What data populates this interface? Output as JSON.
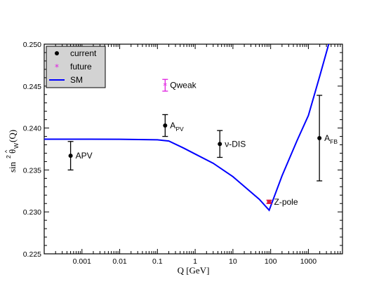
{
  "chart_data": {
    "type": "scatter",
    "xlabel": "Q [GeV]",
    "ylabel_main": "sin",
    "ylabel_sup": "2",
    "ylabel_theta": "θ",
    "ylabel_hat": "^",
    "ylabel_sub": "W",
    "ylabel_tail": "(Q)",
    "xscale": "log",
    "xlim": [
      0.0001,
      8000
    ],
    "ylim": [
      0.225,
      0.25
    ],
    "x_ticks": [
      {
        "value": 0.001,
        "label": "0.001"
      },
      {
        "value": 0.01,
        "label": "0.01"
      },
      {
        "value": 0.1,
        "label": "0.1"
      },
      {
        "value": 1,
        "label": "1"
      },
      {
        "value": 10,
        "label": "10"
      },
      {
        "value": 100,
        "label": "100"
      },
      {
        "value": 1000,
        "label": "1000"
      }
    ],
    "y_ticks": [
      {
        "value": 0.225,
        "label": "0.225"
      },
      {
        "value": 0.23,
        "label": "0.230"
      },
      {
        "value": 0.235,
        "label": "0.235"
      },
      {
        "value": 0.24,
        "label": "0.240"
      },
      {
        "value": 0.245,
        "label": "0.245"
      },
      {
        "value": 0.25,
        "label": "0.250"
      }
    ],
    "grid": false,
    "legend": {
      "position": "top-left",
      "entries": [
        {
          "label": "current",
          "marker": "dot",
          "color": "#000000"
        },
        {
          "label": "future",
          "marker": "star",
          "color": "#e01ee0"
        },
        {
          "label": "SM",
          "marker": "line",
          "color": "#0000ff"
        }
      ]
    },
    "sm_curve": {
      "color": "#0000ff",
      "x": [
        0.0001,
        0.001,
        0.01,
        0.1,
        0.2,
        0.5,
        1,
        3,
        10,
        50,
        91.2,
        200,
        500,
        1000,
        2000,
        3600
      ],
      "y": [
        0.23867,
        0.23867,
        0.23866,
        0.2386,
        0.23845,
        0.2376,
        0.2369,
        0.2358,
        0.2342,
        0.2315,
        0.2302,
        0.2343,
        0.2385,
        0.2415,
        0.2462,
        0.2503
      ]
    },
    "points": [
      {
        "id": "apv",
        "label": "APV",
        "sub": "",
        "x": 0.0005,
        "y": 0.2367,
        "err_low": 0.0017,
        "err_high": 0.0017,
        "kind": "current",
        "color": "#000000"
      },
      {
        "id": "apv-parity",
        "label": "A",
        "sub": "PV",
        "x": 0.16,
        "y": 0.2403,
        "err_low": 0.0013,
        "err_high": 0.0013,
        "kind": "current",
        "color": "#000000"
      },
      {
        "id": "nu-dis",
        "label": "ν-DIS",
        "sub": "",
        "x": 4.5,
        "y": 0.2381,
        "err_low": 0.0016,
        "err_high": 0.0016,
        "kind": "current",
        "color": "#000000"
      },
      {
        "id": "z-pole",
        "label": "Z-pole",
        "sub": "",
        "x": 91.2,
        "y": 0.2312,
        "err_low": 0.0002,
        "err_high": 0.0002,
        "kind": "current",
        "color": "#e01e3c"
      },
      {
        "id": "afb",
        "label": "A",
        "sub": "FB",
        "x": 1960,
        "y": 0.2388,
        "err_low": 0.0051,
        "err_high": 0.0051,
        "kind": "current",
        "color": "#000000"
      },
      {
        "id": "qweak",
        "label": "Qweak",
        "sub": "",
        "x": 0.16,
        "y": 0.2451,
        "err_low": 0.0007,
        "err_high": 0.0007,
        "kind": "future",
        "color": "#e01ee0"
      }
    ]
  }
}
